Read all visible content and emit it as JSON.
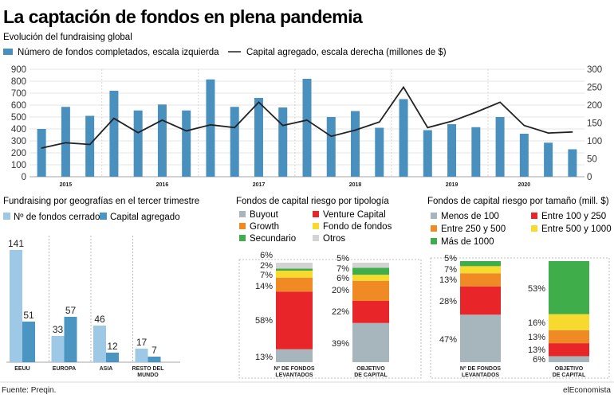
{
  "header": {
    "title": "La captación de fondos en plena pandemia",
    "subtitle": "Evolución del fundraising global",
    "source": "Fuente: Preqin.",
    "brand": "elEconomista"
  },
  "colors": {
    "bar_main": "#4a90be",
    "line_main": "#222222",
    "light_blue": "#9ec9e6",
    "mid_blue": "#4a95c2",
    "buyout": "#a7b6bd",
    "venture": "#e8262a",
    "growth": "#f08a24",
    "fondo_de_fondos": "#f6da2e",
    "secundario": "#3fae4a",
    "otros": "#d3d3d3"
  },
  "chart_data": [
    {
      "type": "bar",
      "title": "Evolución del fundraising global",
      "year_labels": [
        "2015",
        "2016",
        "2017",
        "2018",
        "2019",
        "2020"
      ],
      "year_positions": [
        1.5,
        5.5,
        9.5,
        13.5,
        17.5,
        20.5
      ],
      "left_ticks": [
        "0",
        "100",
        "200",
        "300",
        "400",
        "500",
        "600",
        "700",
        "800",
        "900"
      ],
      "right_ticks": [
        "0",
        "50",
        "100",
        "150",
        "200",
        "250",
        "300"
      ],
      "ylim_left": [
        0,
        900
      ],
      "ylim_right": [
        0,
        300
      ],
      "legend_position": "top",
      "series": [
        {
          "name": "Número de fondos completados, escala izquierda",
          "axis": "left",
          "kind": "bar",
          "values": [
            400,
            585,
            510,
            720,
            555,
            605,
            555,
            815,
            585,
            660,
            580,
            820,
            500,
            550,
            410,
            650,
            390,
            440,
            415,
            500,
            360,
            285,
            230
          ]
        },
        {
          "name": "Capital agregado, escala derecha (millones de $)",
          "axis": "right",
          "kind": "line",
          "values": [
            80,
            95,
            90,
            163,
            123,
            158,
            128,
            145,
            137,
            208,
            143,
            158,
            113,
            130,
            153,
            250,
            137,
            155,
            180,
            208,
            143,
            122,
            125
          ]
        }
      ]
    },
    {
      "type": "bar",
      "title": "Fundraising por geografías en el tercer trimestre",
      "categories": [
        "EEUU",
        "EUROPA",
        "ASIA",
        "RESTO DEL MUNDO"
      ],
      "legend_position": "top-left",
      "series": [
        {
          "name": "Nº de fondos cerrados",
          "values": [
            141,
            33,
            46,
            17
          ]
        },
        {
          "name": "Capital agregado",
          "values": [
            51,
            57,
            12,
            7
          ]
        }
      ],
      "ylim": [
        0,
        145
      ]
    },
    {
      "type": "bar",
      "stacked": true,
      "title": "Fondos de capital riesgo por tipología",
      "categories": [
        "Nº DE FONDOS LEVANTADOS",
        "OBJETIVO DE CAPITAL"
      ],
      "legend": [
        "Buyout",
        "Venture Capital",
        "Growth",
        "Fondo de fondos",
        "Secundario",
        "Otros"
      ],
      "series": [
        {
          "name": "Buyout",
          "values": [
            13,
            39
          ]
        },
        {
          "name": "Venture Capital",
          "values": [
            58,
            22
          ]
        },
        {
          "name": "Growth",
          "values": [
            14,
            20
          ]
        },
        {
          "name": "Fondo de fondos",
          "values": [
            7,
            6
          ]
        },
        {
          "name": "Secundario",
          "values": [
            2,
            7
          ]
        },
        {
          "name": "Otros",
          "values": [
            6,
            5
          ]
        }
      ]
    },
    {
      "type": "bar",
      "stacked": true,
      "title": "Fondos de capital riesgo por tamaño (mill. $)",
      "categories": [
        "Nº DE FONDOS LEVANTADOS",
        "OBJETIVO DE CAPITAL"
      ],
      "legend": [
        "Menos de 100",
        "Entre 100 y 250",
        "Entre 250 y 500",
        "Entre 500 y 1000",
        "Más de 1000"
      ],
      "series": [
        {
          "name": "Menos de 100",
          "values": [
            47,
            6
          ]
        },
        {
          "name": "Entre 100 y 250",
          "values": [
            28,
            13
          ]
        },
        {
          "name": "Entre 250 y 500",
          "values": [
            13,
            13
          ]
        },
        {
          "name": "Entre 500 y 1000",
          "values": [
            7,
            16
          ]
        },
        {
          "name": "Más de 1000",
          "values": [
            5,
            53
          ]
        }
      ]
    }
  ]
}
